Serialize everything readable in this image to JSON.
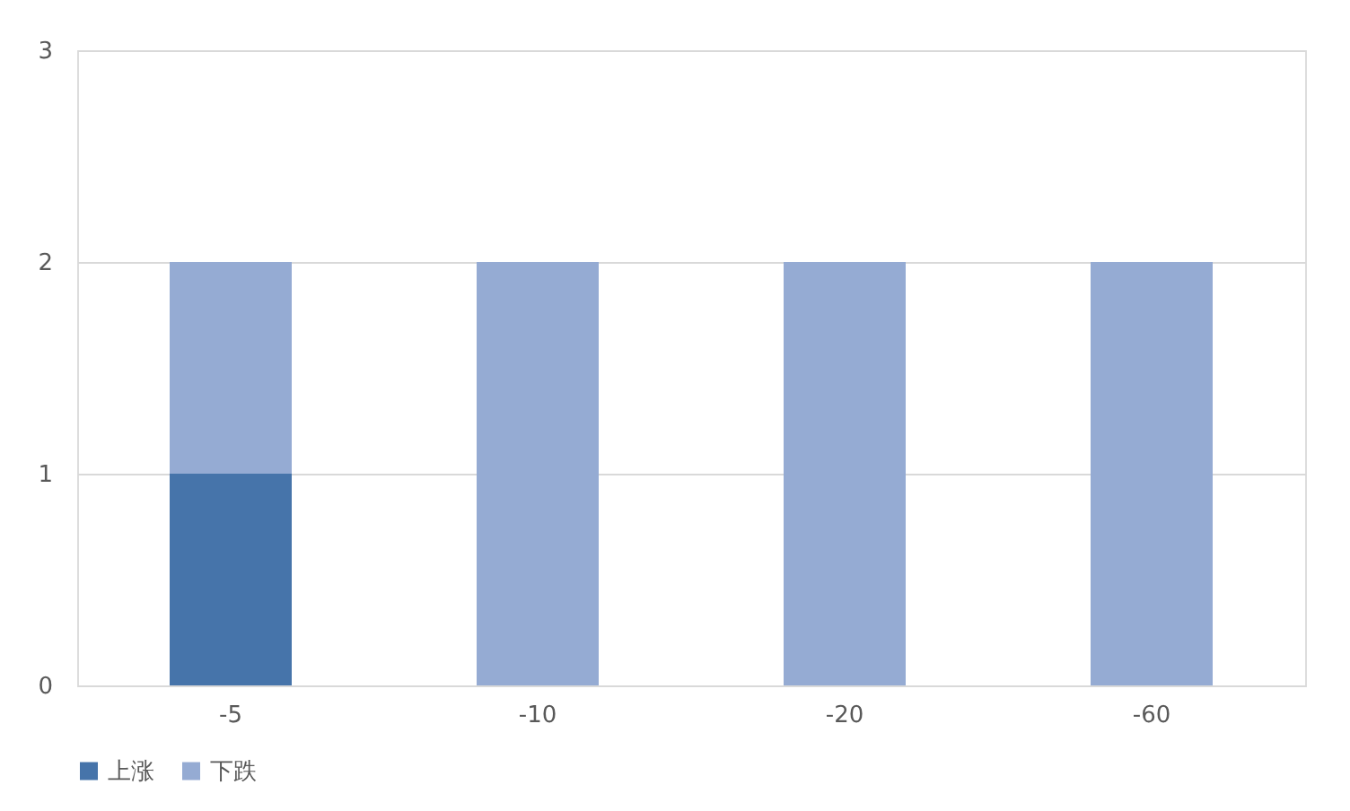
{
  "chart_data": {
    "type": "bar",
    "stacked": true,
    "categories": [
      "-5",
      "-10",
      "-20",
      "-60"
    ],
    "series": [
      {
        "name": "上涨",
        "color": "#4674aa",
        "values": [
          1,
          0,
          0,
          0
        ]
      },
      {
        "name": "下跌",
        "color": "#95abd3",
        "values": [
          1,
          2,
          2,
          2
        ]
      }
    ],
    "ylim": [
      0,
      3
    ],
    "yticks": [
      0,
      1,
      2,
      3
    ],
    "grid": "y",
    "legend": "bottom"
  }
}
